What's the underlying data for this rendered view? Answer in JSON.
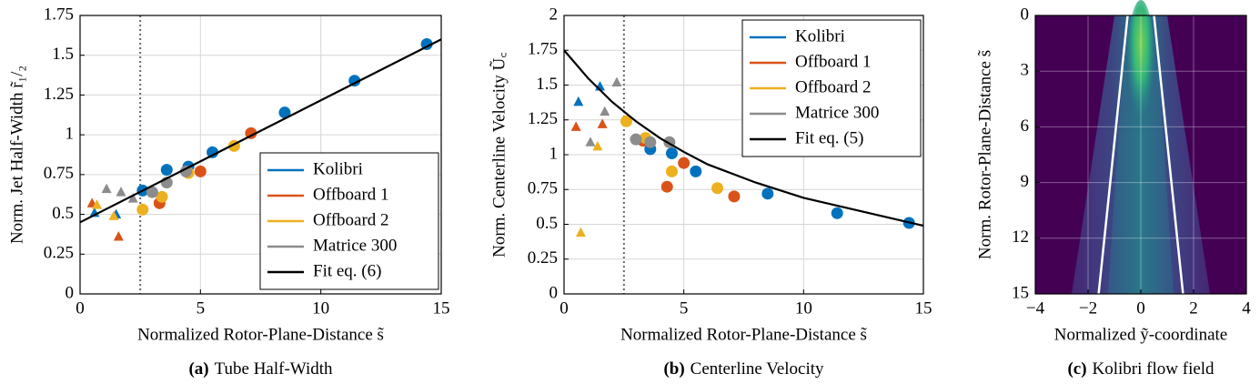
{
  "chart_data": [
    {
      "type": "scatter",
      "ylabel": "Norm. Jet Half-Width r̃₁/₂",
      "xlabel": "Normalized Rotor-Plane-Distance s̃",
      "caption_label": "(a)",
      "caption": "Tube Half-Width",
      "legend": "lower right",
      "grid": true,
      "vline": 2.5,
      "xlim": [
        0,
        15
      ],
      "ylim": [
        0,
        1.75
      ],
      "xticks": [
        0,
        5,
        10,
        15
      ],
      "yticks": [
        0,
        0.25,
        0.5,
        0.75,
        1,
        1.25,
        1.5,
        1.75
      ],
      "series": [
        {
          "name": "Kolibri",
          "color": "#0072bd",
          "x": [
            2.6,
            3.6,
            4.5,
            5.5,
            8.5,
            11.4,
            14.4,
            0.6,
            1.5
          ],
          "values": [
            0.65,
            0.78,
            0.8,
            0.89,
            1.14,
            1.34,
            1.57,
            0.51,
            0.5
          ],
          "markers": [
            "circle",
            "circle",
            "circle",
            "circle",
            "circle",
            "circle",
            "circle",
            "triangle",
            "triangle"
          ]
        },
        {
          "name": "Offboard 1",
          "color": "#d95319",
          "x": [
            3.3,
            5.0,
            7.1,
            0.5,
            1.6
          ],
          "values": [
            0.57,
            0.77,
            1.01,
            0.57,
            0.36
          ],
          "markers": [
            "circle",
            "circle",
            "circle",
            "triangle",
            "triangle"
          ]
        },
        {
          "name": "Offboard 2",
          "color": "#edb120",
          "x": [
            2.6,
            3.4,
            4.5,
            6.4,
            0.7,
            1.4
          ],
          "values": [
            0.53,
            0.61,
            0.76,
            0.93,
            0.56,
            0.49
          ],
          "markers": [
            "circle",
            "circle",
            "circle",
            "circle",
            "triangle",
            "triangle"
          ]
        },
        {
          "name": "Matrice 300",
          "color": "#8c8c8c",
          "x": [
            3.0,
            3.6,
            4.4,
            1.1,
            1.7,
            2.2
          ],
          "values": [
            0.64,
            0.7,
            0.77,
            0.66,
            0.64,
            0.6
          ],
          "markers": [
            "circle",
            "circle",
            "circle",
            "triangle",
            "triangle",
            "triangle"
          ]
        },
        {
          "name": "Fit eq. (6)",
          "color": "#000000",
          "x": [
            0,
            15
          ],
          "values": [
            0.45,
            1.6
          ]
        }
      ]
    },
    {
      "type": "scatter",
      "ylabel": "Norm. Centerline Velocity Ũ꜀",
      "xlabel": "Normalized Rotor-Plane-Distance s̃",
      "caption_label": "(b)",
      "caption": "Centerline Velocity",
      "legend": "upper right",
      "grid": true,
      "vline": 2.5,
      "xlim": [
        0,
        15
      ],
      "ylim": [
        0,
        2
      ],
      "xticks": [
        0,
        5,
        10,
        15
      ],
      "yticks": [
        0,
        0.25,
        0.5,
        0.75,
        1,
        1.25,
        1.5,
        1.75,
        2
      ],
      "series": [
        {
          "name": "Kolibri",
          "color": "#0072bd",
          "x": [
            3.6,
            4.5,
            5.5,
            8.5,
            11.4,
            14.4,
            0.6,
            1.5
          ],
          "values": [
            1.04,
            1.01,
            0.88,
            0.72,
            0.58,
            0.51,
            1.38,
            1.49
          ],
          "markers": [
            "circle",
            "circle",
            "circle",
            "circle",
            "circle",
            "circle",
            "triangle",
            "triangle"
          ]
        },
        {
          "name": "Offboard 1",
          "color": "#d95319",
          "x": [
            3.3,
            4.3,
            5.0,
            7.1,
            0.5,
            1.6
          ],
          "values": [
            1.1,
            0.77,
            0.94,
            0.7,
            1.2,
            1.22
          ],
          "markers": [
            "circle",
            "circle",
            "circle",
            "circle",
            "triangle",
            "triangle"
          ]
        },
        {
          "name": "Offboard 2",
          "color": "#edb120",
          "x": [
            2.6,
            3.4,
            4.5,
            6.4,
            0.7,
            1.4
          ],
          "values": [
            1.24,
            1.12,
            0.88,
            0.76,
            0.44,
            1.06
          ],
          "markers": [
            "circle",
            "circle",
            "circle",
            "circle",
            "triangle",
            "triangle"
          ]
        },
        {
          "name": "Matrice 300",
          "color": "#8c8c8c",
          "x": [
            3.0,
            3.6,
            4.4,
            1.1,
            1.7,
            2.2
          ],
          "values": [
            1.11,
            1.09,
            1.09,
            1.09,
            1.31,
            1.52
          ],
          "markers": [
            "circle",
            "circle",
            "circle",
            "triangle",
            "triangle",
            "triangle"
          ]
        },
        {
          "name": "Fit eq. (5)",
          "color": "#000000",
          "x": [
            0,
            1,
            2,
            3,
            4,
            5,
            6,
            8,
            10,
            12,
            15
          ],
          "values": [
            1.75,
            1.55,
            1.38,
            1.24,
            1.12,
            1.02,
            0.93,
            0.8,
            0.69,
            0.61,
            0.49
          ]
        }
      ]
    },
    {
      "type": "heatmap",
      "ylabel": "Norm. Rotor-Plane-Distance s̃",
      "xlabel": "Normalized ỹ-coordinate",
      "caption_label": "(c)",
      "caption": "Kolibri flow field",
      "grid": true,
      "xlim": [
        -4,
        4
      ],
      "ylim": [
        15,
        0
      ],
      "xticks": [
        {
          "value": -4,
          "label": "−4"
        },
        {
          "value": -2,
          "label": "−2"
        },
        0,
        2,
        4
      ],
      "yticks": [
        0,
        3,
        6,
        9,
        12,
        15
      ],
      "series": [
        {
          "color": "#ffffff",
          "x": [
            -0.5,
            -1.6
          ],
          "values": [
            0,
            15
          ]
        },
        {
          "color": "#ffffff",
          "x": [
            0.5,
            1.6
          ],
          "values": [
            0,
            15
          ]
        }
      ]
    }
  ]
}
